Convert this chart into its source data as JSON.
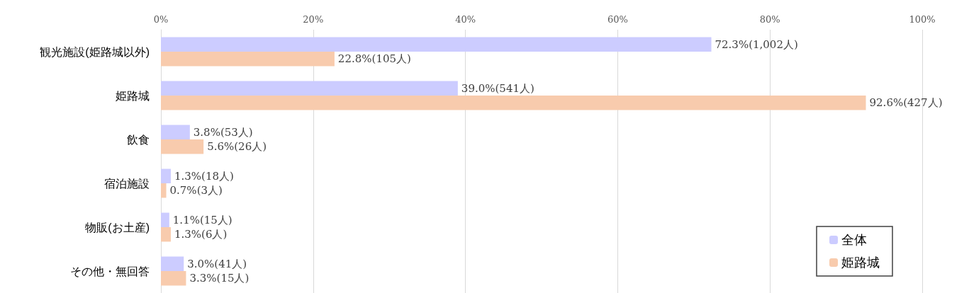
{
  "chart_data": {
    "type": "bar",
    "orientation": "horizontal",
    "categories": [
      "観光施設(姫路城以外)",
      "姫路城",
      "飲食",
      "宿泊施設",
      "物販(お土産)",
      "その他・無回答"
    ],
    "series": [
      {
        "name": "全体",
        "color": "#ccccff",
        "values": [
          72.3,
          39.0,
          3.8,
          1.3,
          1.1,
          3.0
        ],
        "value_labels": [
          "72.3%(1,002人)",
          "39.0%(541人)",
          "3.8%(53人)",
          "1.3%(18人)",
          "1.1%(15人)",
          "3.0%(41人)"
        ]
      },
      {
        "name": "姫路城",
        "color": "#f8cbad",
        "values": [
          22.8,
          92.6,
          5.6,
          0.7,
          1.3,
          3.3
        ],
        "value_labels": [
          "22.8%(105人)",
          "92.6%(427人)",
          "5.6%(26人)",
          "0.7%(3人)",
          "1.3%(6人)",
          "3.3%(15人)"
        ]
      }
    ],
    "xlim": [
      0,
      100
    ],
    "xticks": [
      {
        "value": 0,
        "label": "0%"
      },
      {
        "value": 20,
        "label": "20%"
      },
      {
        "value": 40,
        "label": "40%"
      },
      {
        "value": 60,
        "label": "60%"
      },
      {
        "value": 80,
        "label": "80%"
      },
      {
        "value": 100,
        "label": "100%"
      }
    ],
    "grid": "x",
    "legend": "bottom right"
  }
}
